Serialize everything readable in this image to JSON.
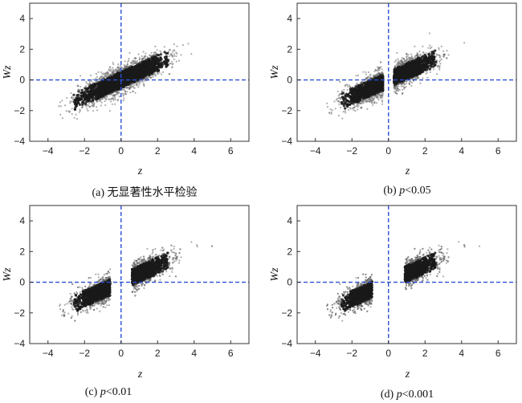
{
  "chart_data": [
    {
      "type": "scatter",
      "caption": "(a) 无显著性水平检验",
      "caption_prefix": "(a) 无显著性水平检验",
      "caption_var": "",
      "caption_rest": "",
      "xlabel": "z",
      "ylabel": "Wz",
      "xlim": [
        -5,
        7
      ],
      "ylim": [
        -4,
        5
      ],
      "xticks": [
        -4,
        -2,
        0,
        2,
        4,
        6
      ],
      "yticks": [
        -4,
        -2,
        0,
        2,
        4
      ],
      "grid": false,
      "reference_lines": {
        "x": 0,
        "y": 0,
        "color": "#2a4fd6"
      },
      "point_color": "#1a1a1a",
      "series": [
        {
          "relation": "Wz ≈ 0.55·z",
          "x_range": [
            -3.4,
            6.4
          ],
          "gap": null
        }
      ]
    },
    {
      "type": "scatter",
      "caption": "(b) p<0.05",
      "caption_prefix": "(b) ",
      "caption_var": "p",
      "caption_rest": "<0.05",
      "xlabel": "z",
      "ylabel": "Wz",
      "xlim": [
        -5,
        7
      ],
      "ylim": [
        -4,
        5
      ],
      "xticks": [
        -4,
        -2,
        0,
        2,
        4,
        6
      ],
      "yticks": [
        -4,
        -2,
        0,
        2,
        4
      ],
      "grid": false,
      "reference_lines": {
        "x": 0,
        "y": 0,
        "color": "#2a4fd6"
      },
      "point_color": "#1a1a1a",
      "series": [
        {
          "relation": "Wz ≈ 0.55·z",
          "x_range": [
            -3.4,
            6.4
          ],
          "gap": [
            -0.3,
            0.3
          ]
        }
      ]
    },
    {
      "type": "scatter",
      "caption": "(c) p<0.01",
      "caption_prefix": "(c) ",
      "caption_var": "p",
      "caption_rest": "<0.01",
      "xlabel": "z",
      "ylabel": "Wz",
      "xlim": [
        -5,
        7
      ],
      "ylim": [
        -4,
        5
      ],
      "xticks": [
        -4,
        -2,
        0,
        2,
        4,
        6
      ],
      "yticks": [
        -4,
        -2,
        0,
        2,
        4
      ],
      "grid": false,
      "reference_lines": {
        "x": 0,
        "y": 0,
        "color": "#2a4fd6"
      },
      "point_color": "#1a1a1a",
      "series": [
        {
          "relation": "Wz ≈ 0.55·z",
          "x_range": [
            -3.4,
            6.4
          ],
          "gap": [
            -0.6,
            0.6
          ]
        }
      ]
    },
    {
      "type": "scatter",
      "caption": "(d) p<0.001",
      "caption_prefix": "(d) ",
      "caption_var": "p",
      "caption_rest": "<0.001",
      "xlabel": "z",
      "ylabel": "Wz",
      "xlim": [
        -5,
        7
      ],
      "ylim": [
        -4,
        5
      ],
      "xticks": [
        -4,
        -2,
        0,
        2,
        4,
        6
      ],
      "yticks": [
        -4,
        -2,
        0,
        2,
        4
      ],
      "grid": false,
      "reference_lines": {
        "x": 0,
        "y": 0,
        "color": "#2a4fd6"
      },
      "point_color": "#1a1a1a",
      "series": [
        {
          "relation": "Wz ≈ 0.55·z",
          "x_range": [
            -3.4,
            6.4
          ],
          "gap": [
            -0.9,
            0.9
          ]
        }
      ]
    }
  ]
}
